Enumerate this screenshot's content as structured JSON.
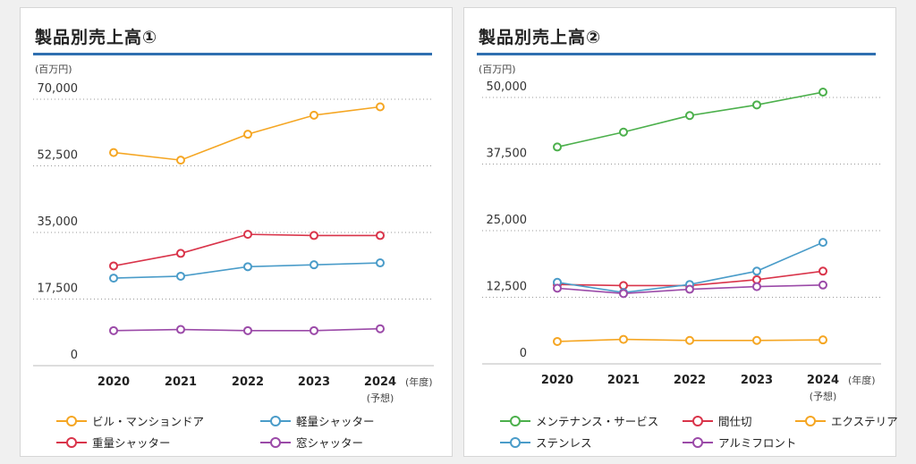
{
  "chart_data": [
    {
      "type": "line",
      "title": "製品別売上高①",
      "unit_label": "(百万円)",
      "categories": [
        "2020",
        "2021",
        "2022",
        "2023",
        "2024"
      ],
      "category_notes": {
        "2024": "(予想)"
      },
      "x_unit": "(年度)",
      "ylim": [
        0,
        70000
      ],
      "yticks": [
        "0",
        "17,500",
        "35,000",
        "52,500",
        "70,000"
      ],
      "ytick_values": [
        0,
        17500,
        35000,
        52500,
        70000
      ],
      "grid": true,
      "legend_position": "bottom",
      "series": [
        {
          "name": "ビル・マンションドア",
          "color": "#f5a623",
          "values": [
            56000,
            54000,
            60800,
            65800,
            68000
          ]
        },
        {
          "name": "軽量シャッター",
          "color": "#4a9cc9",
          "values": [
            23000,
            23500,
            26000,
            26500,
            27000
          ]
        },
        {
          "name": "重量シャッター",
          "color": "#d9344a",
          "values": [
            26200,
            29500,
            34500,
            34200,
            34200
          ]
        },
        {
          "name": "窓シャッター",
          "color": "#9b4aa8",
          "values": [
            9200,
            9500,
            9200,
            9200,
            9700
          ]
        }
      ]
    },
    {
      "type": "line",
      "title": "製品別売上高②",
      "unit_label": "(百万円)",
      "categories": [
        "2020",
        "2021",
        "2022",
        "2023",
        "2024"
      ],
      "category_notes": {
        "2024": "(予想)"
      },
      "x_unit": "(年度)",
      "ylim": [
        0,
        50000
      ],
      "yticks": [
        "0",
        "12,500",
        "25,000",
        "37,500",
        "50,000"
      ],
      "ytick_values": [
        0,
        12500,
        25000,
        37500,
        50000
      ],
      "grid": true,
      "legend_position": "bottom",
      "series": [
        {
          "name": "メンテナンス・サービス",
          "color": "#4cb04c",
          "values": [
            40700,
            43500,
            46600,
            48600,
            51000
          ]
        },
        {
          "name": "間仕切",
          "color": "#d9344a",
          "values": [
            14900,
            14700,
            14700,
            15800,
            17400
          ]
        },
        {
          "name": "エクステリア",
          "color": "#f5a623",
          "values": [
            4200,
            4600,
            4400,
            4400,
            4500
          ]
        },
        {
          "name": "ステンレス",
          "color": "#4a9cc9",
          "values": [
            15300,
            13400,
            14900,
            17400,
            22800
          ]
        },
        {
          "name": "アルミフロント",
          "color": "#9b4aa8",
          "values": [
            14200,
            13200,
            14000,
            14500,
            14800
          ]
        }
      ]
    }
  ]
}
